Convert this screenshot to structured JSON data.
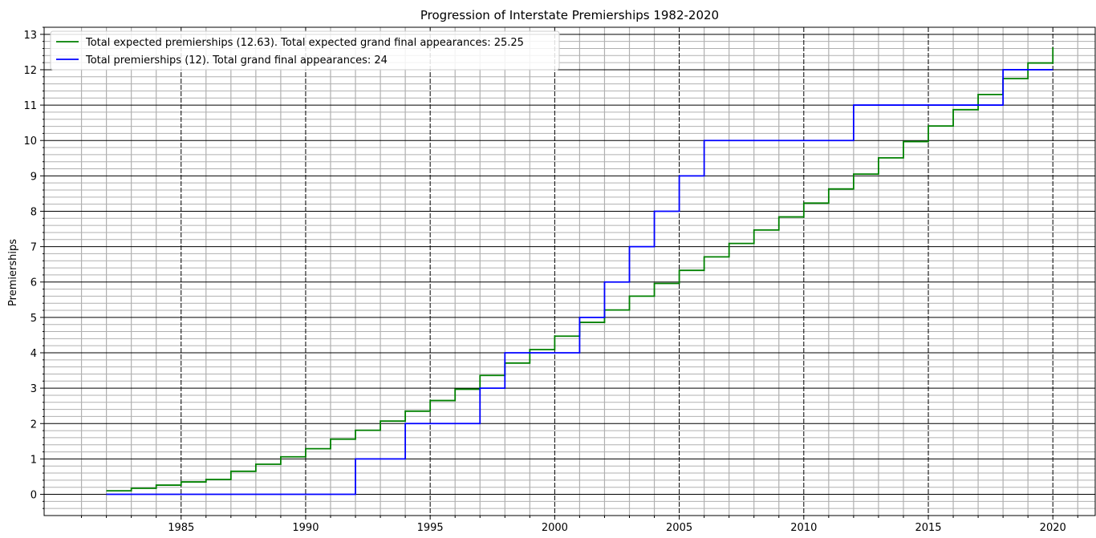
{
  "chart_data": {
    "type": "line",
    "step": "post",
    "title": "Progression of Interstate Premierships 1982-2020",
    "xlabel": "",
    "ylabel": "Premierships",
    "xlim": [
      1979.5,
      2021.7
    ],
    "ylim": [
      -0.6,
      13.2
    ],
    "xticks": [
      1985,
      1990,
      1995,
      2000,
      2005,
      2010,
      2015,
      2020
    ],
    "yticks": [
      0,
      1,
      2,
      3,
      4,
      5,
      6,
      7,
      8,
      9,
      10,
      11,
      12,
      13
    ],
    "grid": true,
    "legend_position": "upper-left",
    "series": [
      {
        "name": "Total expected premierships (12.63). Total expected grand final appearances: 25.25",
        "color": "#008000",
        "x": [
          1982,
          1983,
          1984,
          1985,
          1986,
          1987,
          1988,
          1989,
          1990,
          1991,
          1992,
          1993,
          1994,
          1995,
          1996,
          1997,
          1998,
          1999,
          2000,
          2001,
          2002,
          2003,
          2004,
          2005,
          2006,
          2007,
          2008,
          2009,
          2010,
          2011,
          2012,
          2013,
          2014,
          2015,
          2016,
          2017,
          2018,
          2019,
          2020
        ],
        "y": [
          0.1,
          0.17,
          0.26,
          0.35,
          0.42,
          0.65,
          0.85,
          1.06,
          1.29,
          1.56,
          1.81,
          2.07,
          2.35,
          2.65,
          2.97,
          3.36,
          3.71,
          4.09,
          4.47,
          4.86,
          5.21,
          5.6,
          5.96,
          6.33,
          6.71,
          7.09,
          7.47,
          7.84,
          8.23,
          8.63,
          9.05,
          9.51,
          9.97,
          10.41,
          10.87,
          11.3,
          11.75,
          12.19,
          12.63
        ]
      },
      {
        "name": "Total premierships (12). Total grand final appearances: 24",
        "color": "#0000ff",
        "x": [
          1982,
          1983,
          1984,
          1985,
          1986,
          1987,
          1988,
          1989,
          1990,
          1991,
          1992,
          1993,
          1994,
          1995,
          1996,
          1997,
          1998,
          1999,
          2000,
          2001,
          2002,
          2003,
          2004,
          2005,
          2006,
          2007,
          2008,
          2009,
          2010,
          2011,
          2012,
          2013,
          2014,
          2015,
          2016,
          2017,
          2018,
          2019,
          2020
        ],
        "y": [
          0,
          0,
          0,
          0,
          0,
          0,
          0,
          0,
          0,
          0,
          1,
          1,
          2,
          2,
          2,
          3,
          4,
          4,
          4,
          5,
          6,
          7,
          8,
          9,
          10,
          10,
          10,
          10,
          10,
          10,
          11,
          11,
          11,
          11,
          11,
          11,
          12,
          12,
          12
        ]
      }
    ]
  }
}
